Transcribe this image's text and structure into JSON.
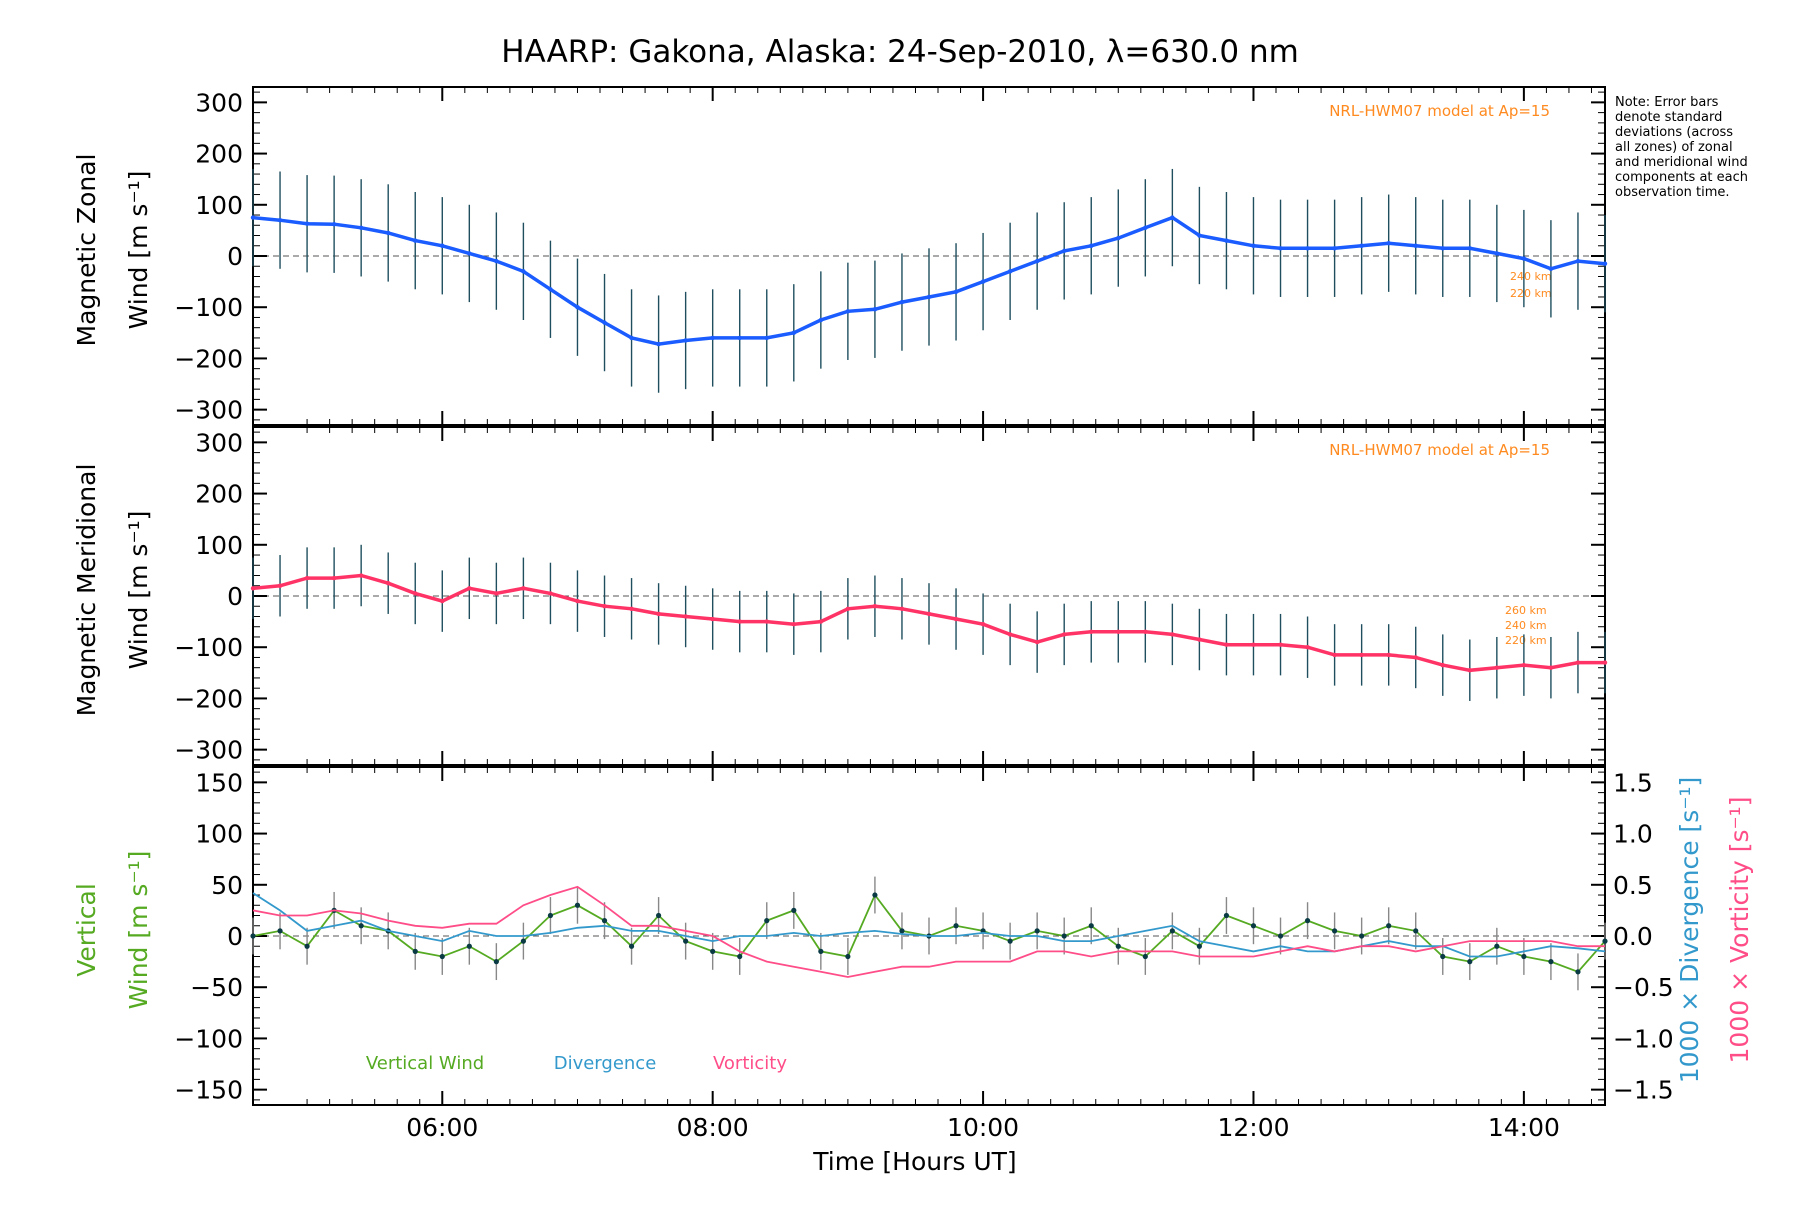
{
  "chart_data": [
    {
      "type": "line",
      "panel": "zonal",
      "title": "HAARP: Gakona,  Alaska: 24-Sep-2010, λ=630.0 nm",
      "ylabel_line1": "Magnetic Zonal",
      "ylabel_line2": "Wind [m s⁻¹]",
      "ylim": [
        -330,
        330
      ],
      "yticks": [
        300,
        200,
        100,
        0,
        -100,
        -200,
        -300
      ],
      "xlim": [
        4.6,
        14.6
      ],
      "model_label": "NRL-HWM07 model at Ap=15",
      "model_altitudes": [
        "240 km",
        "220 km"
      ],
      "note": "Note: Error bars denote standard deviations (across all zones) of zonal and meridional wind components at each observation time.",
      "series": [
        {
          "color": "#1a5cff",
          "x": [
            4.6,
            4.8,
            5.0,
            5.2,
            5.4,
            5.6,
            5.8,
            6.0,
            6.2,
            6.4,
            6.6,
            6.8,
            7.0,
            7.2,
            7.4,
            7.6,
            7.8,
            8.0,
            8.2,
            8.4,
            8.6,
            8.8,
            9.0,
            9.2,
            9.4,
            9.6,
            9.8,
            10.0,
            10.2,
            10.4,
            10.6,
            10.8,
            11.0,
            11.2,
            11.4,
            11.6,
            11.8,
            12.0,
            12.2,
            12.4,
            12.6,
            12.8,
            13.0,
            13.2,
            13.4,
            13.6,
            13.8,
            14.0,
            14.2,
            14.4,
            14.6
          ],
          "y": [
            75,
            70,
            63,
            62,
            55,
            45,
            30,
            20,
            5,
            -10,
            -30,
            -65,
            -100,
            -130,
            -160,
            -172,
            -165,
            -160,
            -160,
            -160,
            -150,
            -125,
            -108,
            -104,
            -90,
            -80,
            -70,
            -50,
            -30,
            -10,
            10,
            20,
            35,
            55,
            75,
            40,
            30,
            20,
            15,
            15,
            15,
            20,
            25,
            20,
            15,
            15,
            5,
            -5,
            -25,
            -10,
            -15
          ]
        }
      ]
    },
    {
      "type": "line",
      "panel": "meridional",
      "ylabel_line1": "Magnetic Meridional",
      "ylabel_line2": "Wind [m s⁻¹]",
      "ylim": [
        -330,
        330
      ],
      "yticks": [
        300,
        200,
        100,
        0,
        -100,
        -200,
        -300
      ],
      "xlim": [
        4.6,
        14.6
      ],
      "model_label": "NRL-HWM07 model at Ap=15",
      "model_altitudes": [
        "260 km",
        "240 km",
        "220 km"
      ],
      "series": [
        {
          "color": "#ff3366",
          "x": [
            4.6,
            4.8,
            5.0,
            5.2,
            5.4,
            5.6,
            5.8,
            6.0,
            6.2,
            6.4,
            6.6,
            6.8,
            7.0,
            7.2,
            7.4,
            7.6,
            7.8,
            8.0,
            8.2,
            8.4,
            8.6,
            8.8,
            9.0,
            9.2,
            9.4,
            9.6,
            9.8,
            10.0,
            10.2,
            10.4,
            10.6,
            10.8,
            11.0,
            11.2,
            11.4,
            11.6,
            11.8,
            12.0,
            12.2,
            12.4,
            12.6,
            12.8,
            13.0,
            13.2,
            13.4,
            13.6,
            13.8,
            14.0,
            14.2,
            14.4,
            14.6
          ],
          "y": [
            15,
            20,
            35,
            35,
            40,
            25,
            5,
            -10,
            15,
            5,
            15,
            5,
            -10,
            -20,
            -25,
            -35,
            -40,
            -45,
            -50,
            -50,
            -55,
            -50,
            -25,
            -20,
            -25,
            -35,
            -45,
            -55,
            -75,
            -90,
            -75,
            -70,
            -70,
            -70,
            -75,
            -85,
            -95,
            -95,
            -95,
            -100,
            -115,
            -115,
            -115,
            -120,
            -135,
            -145,
            -140,
            -135,
            -140,
            -130,
            -130
          ]
        }
      ]
    },
    {
      "type": "line",
      "panel": "vertical",
      "ylabel_line1": "Vertical",
      "ylabel_line2": "Wind [m s⁻¹]",
      "y2label_div": "1000 × Divergence [s⁻¹]",
      "y2label_vort": "1000 × Vorticity [s⁻¹]",
      "ylim": [
        -165,
        165
      ],
      "yticks": [
        150,
        100,
        50,
        0,
        -50,
        -100,
        -150
      ],
      "y2lim": [
        -1.65,
        1.65
      ],
      "y2ticks": [
        "1.5",
        "1.0",
        "0.5",
        "0.0",
        "−0.5",
        "−1.0",
        "−1.5"
      ],
      "y2tick_values": [
        1.5,
        1.0,
        0.5,
        0.0,
        -0.5,
        -1.0,
        -1.5
      ],
      "xlim": [
        4.6,
        14.6
      ],
      "xticks": [
        6,
        8,
        10,
        12,
        14
      ],
      "xtick_labels": [
        "06:00",
        "08:00",
        "10:00",
        "12:00",
        "14:00"
      ],
      "xlabel": "Time [Hours UT]",
      "legend": [
        "Vertical Wind",
        "Divergence",
        "Vorticity"
      ],
      "series": [
        {
          "name": "Vertical Wind",
          "color": "#55aa22",
          "x": [
            4.6,
            4.8,
            5.0,
            5.2,
            5.4,
            5.6,
            5.8,
            6.0,
            6.2,
            6.4,
            6.6,
            6.8,
            7.0,
            7.2,
            7.4,
            7.6,
            7.8,
            8.0,
            8.2,
            8.4,
            8.6,
            8.8,
            9.0,
            9.2,
            9.4,
            9.6,
            9.8,
            10.0,
            10.2,
            10.4,
            10.6,
            10.8,
            11.0,
            11.2,
            11.4,
            11.6,
            11.8,
            12.0,
            12.2,
            12.4,
            12.6,
            12.8,
            13.0,
            13.2,
            13.4,
            13.6,
            13.8,
            14.0,
            14.2,
            14.4,
            14.6
          ],
          "y": [
            0,
            5,
            -10,
            25,
            10,
            5,
            -15,
            -20,
            -10,
            -25,
            -5,
            20,
            30,
            15,
            -10,
            20,
            -5,
            -15,
            -20,
            15,
            25,
            -15,
            -20,
            40,
            5,
            0,
            10,
            5,
            -5,
            5,
            0,
            10,
            -10,
            -20,
            5,
            -10,
            20,
            10,
            0,
            15,
            5,
            0,
            10,
            5,
            -20,
            -25,
            -10,
            -20,
            -25,
            -35,
            -5
          ]
        },
        {
          "name": "Divergence",
          "color": "#3399cc",
          "x": [
            4.6,
            4.8,
            5.0,
            5.2,
            5.4,
            5.6,
            5.8,
            6.0,
            6.2,
            6.4,
            6.6,
            6.8,
            7.0,
            7.2,
            7.4,
            7.6,
            7.8,
            8.0,
            8.2,
            8.4,
            8.6,
            8.8,
            9.0,
            9.2,
            9.4,
            9.6,
            9.8,
            10.0,
            10.2,
            10.4,
            10.6,
            10.8,
            11.0,
            11.2,
            11.4,
            11.6,
            11.8,
            12.0,
            12.2,
            12.4,
            12.6,
            12.8,
            13.0,
            13.2,
            13.4,
            13.6,
            13.8,
            14.0,
            14.2,
            14.4,
            14.6
          ],
          "y": [
            0.42,
            0.25,
            0.05,
            0.1,
            0.15,
            0.05,
            0.0,
            -0.05,
            0.05,
            0.0,
            0.0,
            0.03,
            0.08,
            0.1,
            0.05,
            0.05,
            0.0,
            -0.05,
            0.0,
            0.0,
            0.03,
            0.0,
            0.03,
            0.05,
            0.02,
            0.0,
            0.0,
            0.03,
            0.0,
            0.0,
            -0.05,
            -0.05,
            0.0,
            0.05,
            0.1,
            -0.05,
            -0.1,
            -0.15,
            -0.1,
            -0.15,
            -0.15,
            -0.1,
            -0.05,
            -0.1,
            -0.1,
            -0.2,
            -0.2,
            -0.15,
            -0.1,
            -0.12,
            -0.15
          ]
        },
        {
          "name": "Vorticity",
          "color": "#ff4d88",
          "x": [
            4.6,
            4.8,
            5.0,
            5.2,
            5.4,
            5.6,
            5.8,
            6.0,
            6.2,
            6.4,
            6.6,
            6.8,
            7.0,
            7.2,
            7.4,
            7.6,
            7.8,
            8.0,
            8.2,
            8.4,
            8.6,
            8.8,
            9.0,
            9.2,
            9.4,
            9.6,
            9.8,
            10.0,
            10.2,
            10.4,
            10.6,
            10.8,
            11.0,
            11.2,
            11.4,
            11.6,
            11.8,
            12.0,
            12.2,
            12.4,
            12.6,
            12.8,
            13.0,
            13.2,
            13.4,
            13.6,
            13.8,
            14.0,
            14.2,
            14.4,
            14.6
          ],
          "y": [
            0.25,
            0.2,
            0.2,
            0.25,
            0.22,
            0.15,
            0.1,
            0.08,
            0.12,
            0.12,
            0.3,
            0.4,
            0.48,
            0.3,
            0.1,
            0.1,
            0.05,
            0.0,
            -0.15,
            -0.25,
            -0.3,
            -0.35,
            -0.4,
            -0.35,
            -0.3,
            -0.3,
            -0.25,
            -0.25,
            -0.25,
            -0.15,
            -0.15,
            -0.2,
            -0.15,
            -0.15,
            -0.15,
            -0.2,
            -0.2,
            -0.2,
            -0.15,
            -0.1,
            -0.15,
            -0.1,
            -0.1,
            -0.15,
            -0.1,
            -0.05,
            -0.05,
            -0.05,
            -0.05,
            -0.1,
            -0.1
          ]
        }
      ]
    }
  ]
}
